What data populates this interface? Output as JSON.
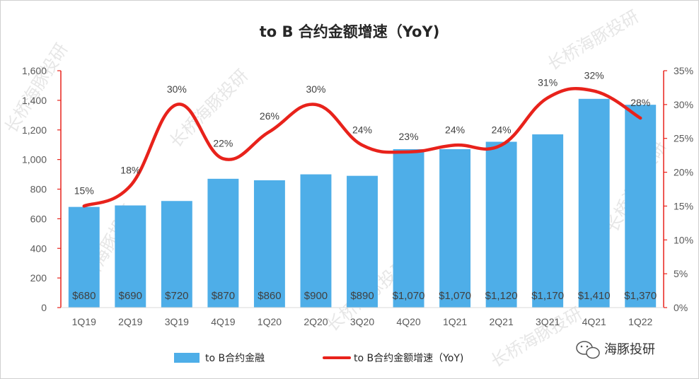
{
  "chart_data": {
    "type": "bar",
    "title": "to B 合约金额增速（YoY)",
    "categories": [
      "1Q19",
      "2Q19",
      "3Q19",
      "4Q19",
      "1Q20",
      "2Q20",
      "3Q20",
      "4Q20",
      "1Q21",
      "2Q21",
      "3Q21",
      "4Q21",
      "1Q22"
    ],
    "series": [
      {
        "name": "to B合约金融",
        "type": "bar",
        "axis": "left",
        "color": "#4eaee8",
        "values": [
          680,
          690,
          720,
          870,
          860,
          900,
          890,
          1070,
          1070,
          1120,
          1170,
          1410,
          1370
        ],
        "labels": [
          "$680",
          "$690",
          "$720",
          "$870",
          "$860",
          "$900",
          "$890",
          "$1,070",
          "$1,070",
          "$1,120",
          "$1,170",
          "$1,410",
          "$1,370"
        ]
      },
      {
        "name": "to B合约金额增速（YoY)",
        "type": "line",
        "axis": "right",
        "color": "#e8221b",
        "values": [
          15,
          18,
          30,
          22,
          26,
          30,
          24,
          23,
          24,
          24,
          31,
          32,
          28
        ],
        "labels": [
          "15%",
          "18%",
          "30%",
          "22%",
          "26%",
          "30%",
          "24%",
          "23%",
          "24%",
          "24%",
          "31%",
          "32%",
          "28%"
        ]
      }
    ],
    "y_left": {
      "min": 0,
      "max": 1600,
      "ticks": [
        "0",
        "200",
        "400",
        "600",
        "800",
        "1,000",
        "1,200",
        "1,400",
        "1,600"
      ]
    },
    "y_right": {
      "min": 0,
      "max": 35,
      "ticks": [
        "0%",
        "5%",
        "10%",
        "15%",
        "20%",
        "25%",
        "30%",
        "35%"
      ]
    },
    "grid": false,
    "legend_position": "bottom"
  },
  "watermark": "长桥海豚投研",
  "brand": {
    "name": "海豚投研",
    "icon": "wechat-icon"
  }
}
